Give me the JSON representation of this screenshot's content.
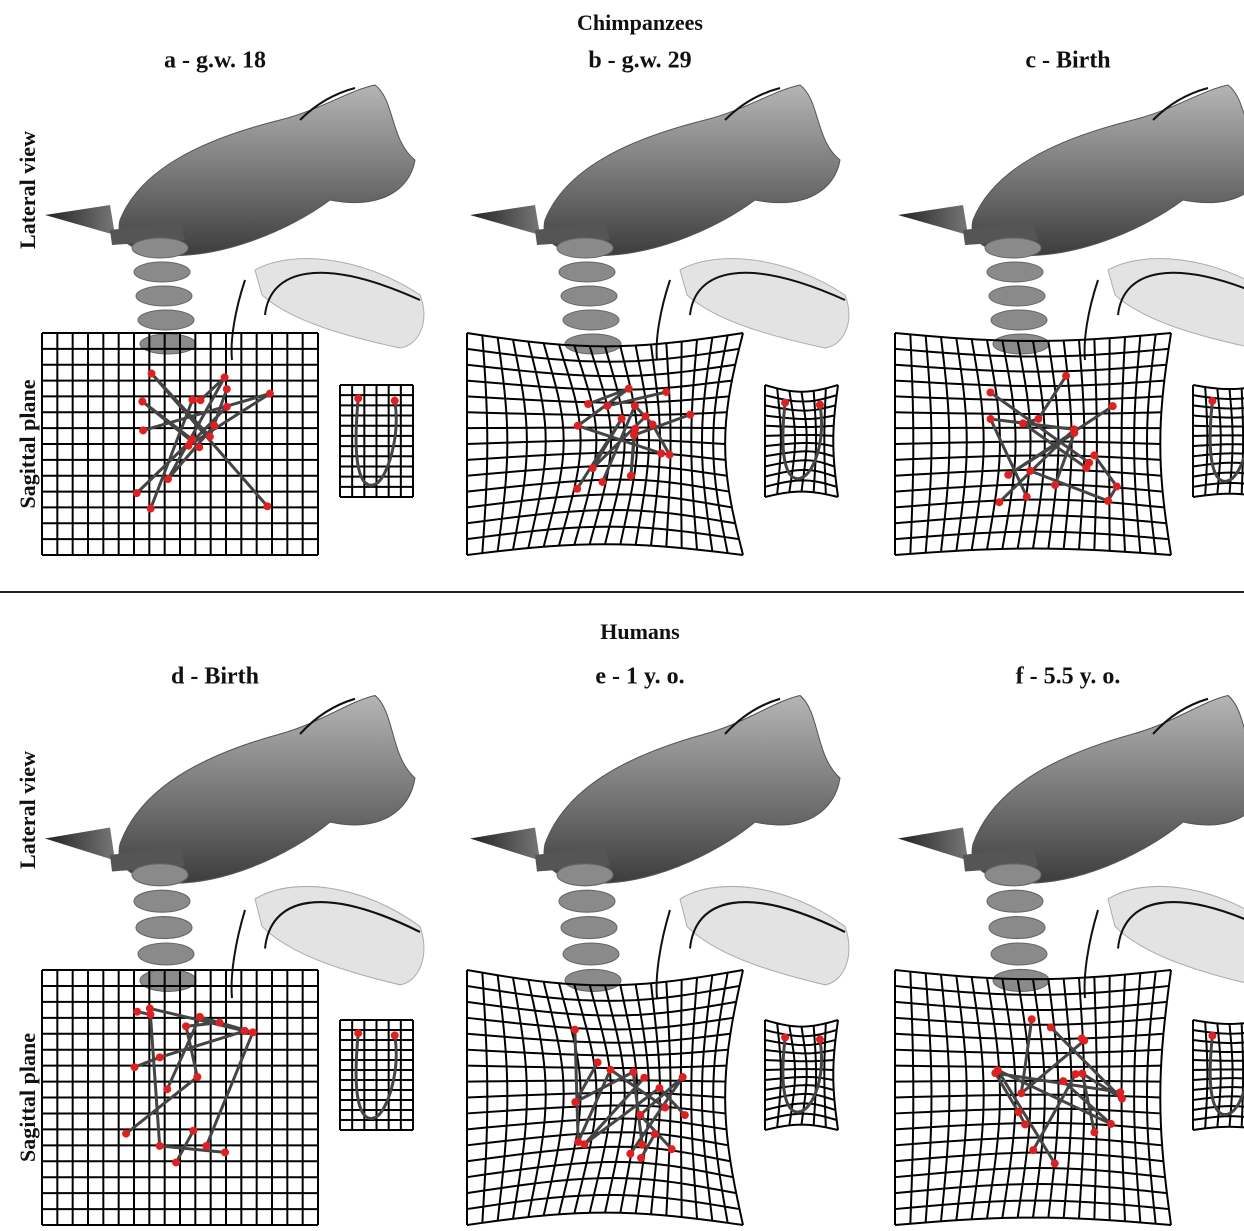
{
  "groups": [
    {
      "title": "Chimpanzees",
      "row_labels": [
        "Lateral view",
        "Sagittal plane"
      ],
      "panels": [
        "a - g.w. 18",
        "b - g.w. 29",
        "c - Birth"
      ]
    },
    {
      "title": "Humans",
      "row_labels": [
        "Lateral view",
        "Sagittal plane"
      ],
      "panels": [
        "d - Birth",
        "e - 1 y. o.",
        "f - 5.5 y. o."
      ]
    }
  ]
}
